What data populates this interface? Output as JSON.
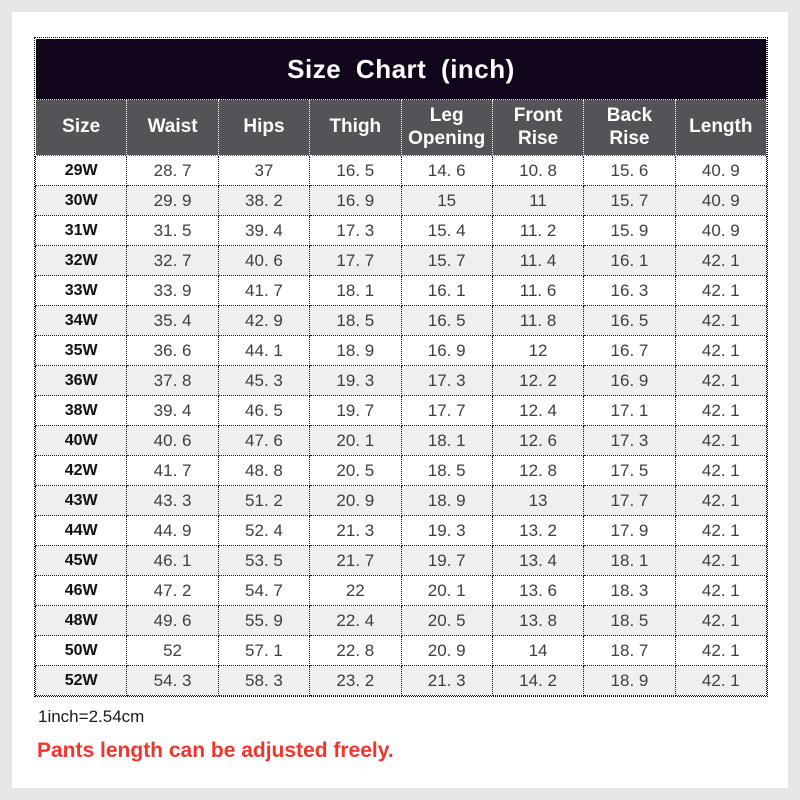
{
  "chart_data": {
    "type": "table",
    "title": "Size Chart (inch)",
    "columns": [
      "Size",
      "Waist",
      "Hips",
      "Thigh",
      "Leg Opening",
      "Front Rise",
      "Back Rise",
      "Length"
    ],
    "rows": [
      [
        "29W",
        28.7,
        37,
        16.5,
        14.6,
        10.8,
        15.6,
        40.9
      ],
      [
        "30W",
        29.9,
        38.2,
        16.9,
        15,
        11,
        15.7,
        40.9
      ],
      [
        "31W",
        31.5,
        39.4,
        17.3,
        15.4,
        11.2,
        15.9,
        40.9
      ],
      [
        "32W",
        32.7,
        40.6,
        17.7,
        15.7,
        11.4,
        16.1,
        42.1
      ],
      [
        "33W",
        33.9,
        41.7,
        18.1,
        16.1,
        11.6,
        16.3,
        42.1
      ],
      [
        "34W",
        35.4,
        42.9,
        18.5,
        16.5,
        11.8,
        16.5,
        42.1
      ],
      [
        "35W",
        36.6,
        44.1,
        18.9,
        16.9,
        12,
        16.7,
        42.1
      ],
      [
        "36W",
        37.8,
        45.3,
        19.3,
        17.3,
        12.2,
        16.9,
        42.1
      ],
      [
        "38W",
        39.4,
        46.5,
        19.7,
        17.7,
        12.4,
        17.1,
        42.1
      ],
      [
        "40W",
        40.6,
        47.6,
        20.1,
        18.1,
        12.6,
        17.3,
        42.1
      ],
      [
        "42W",
        41.7,
        48.8,
        20.5,
        18.5,
        12.8,
        17.5,
        42.1
      ],
      [
        "43W",
        43.3,
        51.2,
        20.9,
        18.9,
        13,
        17.7,
        42.1
      ],
      [
        "44W",
        44.9,
        52.4,
        21.3,
        19.3,
        13.2,
        17.9,
        42.1
      ],
      [
        "45W",
        46.1,
        53.5,
        21.7,
        19.7,
        13.4,
        18.1,
        42.1
      ],
      [
        "46W",
        47.2,
        54.7,
        22,
        20.1,
        13.6,
        18.3,
        42.1
      ],
      [
        "48W",
        49.6,
        55.9,
        22.4,
        20.5,
        13.8,
        18.5,
        42.1
      ],
      [
        "50W",
        52,
        57.1,
        22.8,
        20.9,
        14,
        18.7,
        42.1
      ],
      [
        "52W",
        54.3,
        58.3,
        23.2,
        21.3,
        14.2,
        18.9,
        42.1
      ]
    ],
    "unit_note": "1inch=2.54cm",
    "footnote": "Pants length can be adjusted freely.",
    "layout_hints": {
      "title_bar_color": "#10051a",
      "header_bg_color": "#555358",
      "alt_row_color": "#efefef",
      "footnote_color": "#f1352b",
      "grid": "dotted"
    }
  }
}
